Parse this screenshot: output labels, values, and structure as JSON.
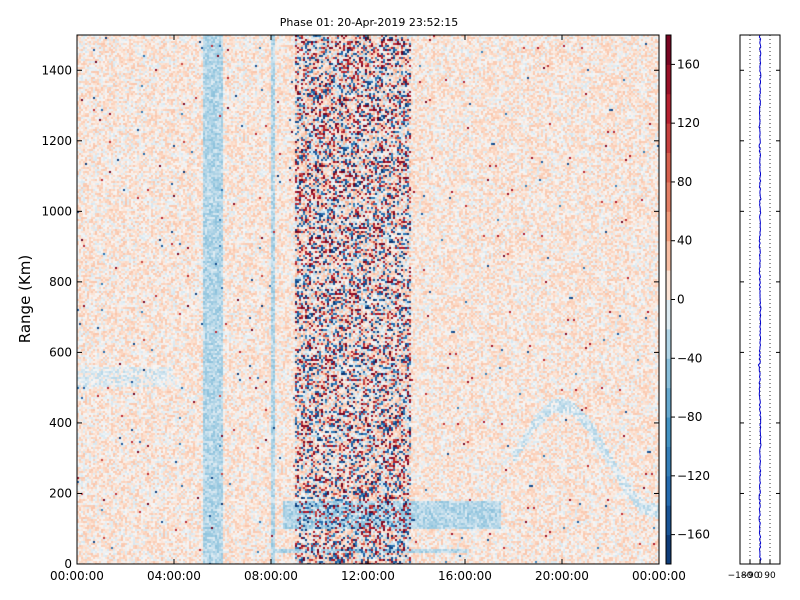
{
  "chart_data": {
    "type": "heatmap",
    "title": "Phase 01: 20-Apr-2019 23:52:15",
    "xlabel": "",
    "ylabel": "Range (Km)",
    "x_ticks": [
      "00:00:00",
      "04:00:00",
      "08:00:00",
      "12:00:00",
      "16:00:00",
      "20:00:00",
      "00:00:00"
    ],
    "x_range_hours": [
      0,
      24
    ],
    "y_ticks": [
      0,
      200,
      400,
      600,
      800,
      1000,
      1200,
      1400
    ],
    "ylim": [
      0,
      1500
    ],
    "colorbar": {
      "colormap": "RdBu_r",
      "range": [
        -180,
        180
      ],
      "ticks": [
        "160",
        "120",
        "80",
        "40",
        "0",
        "−40",
        "−80",
        "−120",
        "−160"
      ],
      "tick_values": [
        160,
        120,
        80,
        40,
        0,
        -40,
        -80,
        -120,
        -160
      ],
      "colors": {
        "low": "#08306b",
        "mid": "#f7f7f7",
        "high": "#67001f"
      }
    },
    "features": [
      {
        "label": "noisy phase band",
        "x_hours": [
          9.0,
          13.8
        ],
        "y_km": [
          0,
          1500
        ]
      },
      {
        "label": "vertical band",
        "x_hours": [
          5.2,
          6.0
        ],
        "y_km": [
          0,
          1500
        ]
      },
      {
        "label": "vertical band",
        "x_hours": [
          8.0,
          8.2
        ],
        "y_km": [
          0,
          1500
        ]
      },
      {
        "label": "horizontal band",
        "x_hours": [
          8.5,
          17.5
        ],
        "y_km": [
          100,
          180
        ]
      },
      {
        "label": "horizontal band",
        "x_hours": [
          8.2,
          16.2
        ],
        "y_km": [
          30,
          40
        ]
      }
    ],
    "profile_panel": {
      "x_ticks": [
        "−180",
        "−90",
        "0",
        "90"
      ],
      "x_tick_values": [
        -180,
        -90,
        0,
        90
      ],
      "xlim": [
        -180,
        180
      ],
      "line_color": "#0000cc"
    }
  }
}
